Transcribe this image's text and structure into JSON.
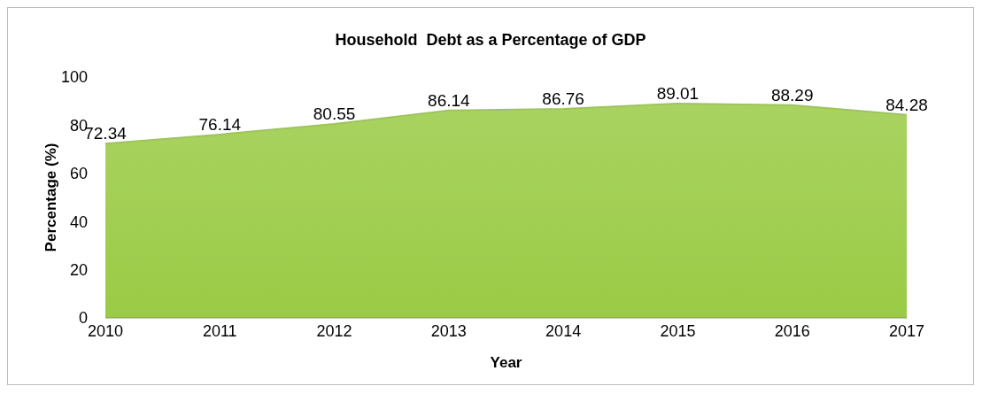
{
  "chart_data": {
    "type": "area",
    "title": "Household  Debt as a Percentage of GDP",
    "xlabel": "Year",
    "ylabel": "Percentage (%)",
    "categories": [
      "2010",
      "2011",
      "2012",
      "2013",
      "2014",
      "2015",
      "2016",
      "2017"
    ],
    "values": [
      72.34,
      76.14,
      80.55,
      86.14,
      86.76,
      89.01,
      88.29,
      84.28
    ],
    "color": "#9acb45",
    "ylim": [
      0,
      100
    ],
    "yticks": [
      0,
      20,
      40,
      60,
      80,
      100
    ],
    "data_labels": true,
    "grid": false
  }
}
